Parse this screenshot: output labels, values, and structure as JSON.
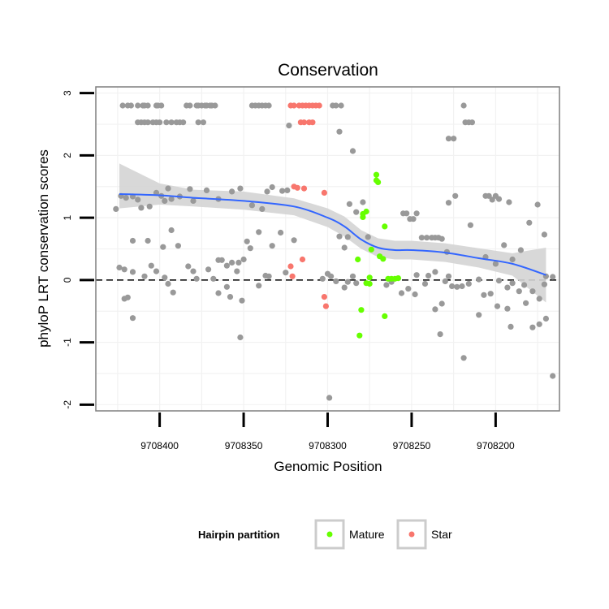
{
  "colors": {
    "other": "#999999",
    "mature": "#66ff00",
    "star": "#f8766d",
    "smooth": "#3366ff",
    "ribbon": "#d4d4d4",
    "grid": "#f2f2f2",
    "panel_border": "#7f7f7f"
  },
  "chart_data": {
    "type": "scatter",
    "title": "Conservation",
    "xlabel": "Genomic Position",
    "ylabel": "phyloP LRT conservation scores",
    "x_reversed": true,
    "xlim": [
      9708438,
      9708162
    ],
    "ylim": [
      -2.1,
      3.1
    ],
    "x_ticks": [
      9708400,
      9708350,
      9708300,
      9708250,
      9708200
    ],
    "x_tick_labels": [
      "9708400",
      "9708350",
      "9708300",
      "9708250",
      "9708200"
    ],
    "y_ticks": [
      -2,
      -1,
      0,
      1,
      2,
      3
    ],
    "y_tick_labels": [
      "-2",
      "-1",
      "0",
      "1",
      "2",
      "3"
    ],
    "reference_line": {
      "y": 0,
      "style": "dashed"
    },
    "legend": {
      "title": "Hairpin partition",
      "position": "bottom",
      "entries": [
        {
          "name": "Mature",
          "color_key": "mature"
        },
        {
          "name": "Star",
          "color_key": "star"
        }
      ]
    },
    "smooth": {
      "x": [
        9708424,
        9708400,
        9708380,
        9708350,
        9708320,
        9708300,
        9708290,
        9708280,
        9708270,
        9708260,
        9708250,
        9708230,
        9708210,
        9708190,
        9708170
      ],
      "y": [
        1.38,
        1.36,
        1.32,
        1.27,
        1.18,
        1.0,
        0.86,
        0.65,
        0.52,
        0.48,
        0.48,
        0.44,
        0.35,
        0.26,
        0.08
      ],
      "lower": [
        1.15,
        1.21,
        1.18,
        1.13,
        1.04,
        0.85,
        0.7,
        0.5,
        0.37,
        0.33,
        0.33,
        0.29,
        0.2,
        0.07,
        -0.36
      ],
      "upper": [
        1.87,
        1.55,
        1.45,
        1.42,
        1.31,
        1.15,
        1.02,
        0.8,
        0.67,
        0.63,
        0.63,
        0.59,
        0.51,
        0.43,
        0.52
      ]
    },
    "series": [
      {
        "name": "Other",
        "color_key": "other",
        "points": [
          [
            9708422,
            2.8
          ],
          [
            9708419,
            2.8
          ],
          [
            9708417,
            2.8
          ],
          [
            9708413,
            2.8
          ],
          [
            9708410,
            2.8
          ],
          [
            9708409,
            2.8
          ],
          [
            9708407,
            2.8
          ],
          [
            9708402,
            2.8
          ],
          [
            9708401,
            2.8
          ],
          [
            9708399,
            2.8
          ],
          [
            9708384,
            2.8
          ],
          [
            9708382,
            2.8
          ],
          [
            9708378,
            2.8
          ],
          [
            9708377,
            2.8
          ],
          [
            9708375,
            2.8
          ],
          [
            9708373,
            2.8
          ],
          [
            9708372,
            2.8
          ],
          [
            9708370,
            2.8
          ],
          [
            9708369,
            2.8
          ],
          [
            9708367,
            2.8
          ],
          [
            9708345,
            2.8
          ],
          [
            9708343,
            2.8
          ],
          [
            9708341,
            2.8
          ],
          [
            9708339,
            2.8
          ],
          [
            9708337,
            2.8
          ],
          [
            9708335,
            2.8
          ],
          [
            9708297,
            2.8
          ],
          [
            9708295,
            2.8
          ],
          [
            9708292,
            2.8
          ],
          [
            9708219,
            2.8
          ],
          [
            9708413,
            2.53
          ],
          [
            9708411,
            2.53
          ],
          [
            9708409,
            2.53
          ],
          [
            9708407,
            2.53
          ],
          [
            9708404,
            2.53
          ],
          [
            9708402,
            2.53
          ],
          [
            9708400,
            2.53
          ],
          [
            9708396,
            2.53
          ],
          [
            9708393,
            2.53
          ],
          [
            9708390,
            2.53
          ],
          [
            9708388,
            2.53
          ],
          [
            9708386,
            2.53
          ],
          [
            9708377,
            2.53
          ],
          [
            9708374,
            2.53
          ],
          [
            9708218,
            2.53
          ],
          [
            9708216,
            2.53
          ],
          [
            9708214,
            2.53
          ],
          [
            9708323,
            2.48
          ],
          [
            9708293,
            2.38
          ],
          [
            9708285,
            2.07
          ],
          [
            9708228,
            2.27
          ],
          [
            9708225,
            2.27
          ],
          [
            9708426,
            1.14
          ],
          [
            9708423,
            1.35
          ],
          [
            9708420,
            1.32
          ],
          [
            9708416,
            1.34
          ],
          [
            9708413,
            1.29
          ],
          [
            9708411,
            1.16
          ],
          [
            9708406,
            1.18
          ],
          [
            9708402,
            1.4
          ],
          [
            9708399,
            1.35
          ],
          [
            9708397,
            1.27
          ],
          [
            9708395,
            1.47
          ],
          [
            9708393,
            1.3
          ],
          [
            9708388,
            1.34
          ],
          [
            9708382,
            1.46
          ],
          [
            9708380,
            1.27
          ],
          [
            9708372,
            1.44
          ],
          [
            9708365,
            1.3
          ],
          [
            9708357,
            1.42
          ],
          [
            9708352,
            1.47
          ],
          [
            9708345,
            1.2
          ],
          [
            9708339,
            1.14
          ],
          [
            9708336,
            1.42
          ],
          [
            9708333,
            1.49
          ],
          [
            9708327,
            1.43
          ],
          [
            9708324,
            1.44
          ],
          [
            9708287,
            1.22
          ],
          [
            9708283,
            1.09
          ],
          [
            9708276,
            0.69
          ],
          [
            9708279,
            1.25
          ],
          [
            9708255,
            1.07
          ],
          [
            9708253,
            1.07
          ],
          [
            9708251,
            0.98
          ],
          [
            9708249,
            0.98
          ],
          [
            9708247,
            1.07
          ],
          [
            9708228,
            1.24
          ],
          [
            9708224,
            1.35
          ],
          [
            9708206,
            1.35
          ],
          [
            9708204,
            1.35
          ],
          [
            9708202,
            1.29
          ],
          [
            9708200,
            1.35
          ],
          [
            9708198,
            1.3
          ],
          [
            9708192,
            1.25
          ],
          [
            9708180,
            0.92
          ],
          [
            9708175,
            1.21
          ],
          [
            9708416,
            0.63
          ],
          [
            9708407,
            0.63
          ],
          [
            9708398,
            0.53
          ],
          [
            9708393,
            0.8
          ],
          [
            9708389,
            0.55
          ],
          [
            9708371,
            0.17
          ],
          [
            9708365,
            0.32
          ],
          [
            9708363,
            0.32
          ],
          [
            9708360,
            0.23
          ],
          [
            9708357,
            0.28
          ],
          [
            9708353,
            0.28
          ],
          [
            9708348,
            0.62
          ],
          [
            9708346,
            0.51
          ],
          [
            9708341,
            0.77
          ],
          [
            9708333,
            0.55
          ],
          [
            9708328,
            0.76
          ],
          [
            9708320,
            0.64
          ],
          [
            9708293,
            0.7
          ],
          [
            9708290,
            0.52
          ],
          [
            9708288,
            0.69
          ],
          [
            9708244,
            0.68
          ],
          [
            9708241,
            0.68
          ],
          [
            9708238,
            0.68
          ],
          [
            9708236,
            0.68
          ],
          [
            9708234,
            0.68
          ],
          [
            9708232,
            0.66
          ],
          [
            9708229,
            0.45
          ],
          [
            9708215,
            0.88
          ],
          [
            9708206,
            0.37
          ],
          [
            9708200,
            0.26
          ],
          [
            9708195,
            0.56
          ],
          [
            9708190,
            0.33
          ],
          [
            9708185,
            0.48
          ],
          [
            9708171,
            0.73
          ],
          [
            9708424,
            0.2
          ],
          [
            9708421,
            0.17
          ],
          [
            9708416,
            0.13
          ],
          [
            9708409,
            0.06
          ],
          [
            9708405,
            0.23
          ],
          [
            9708402,
            0.14
          ],
          [
            9708397,
            0.04
          ],
          [
            9708395,
            -0.06
          ],
          [
            9708392,
            -0.2
          ],
          [
            9708383,
            0.22
          ],
          [
            9708380,
            0.14
          ],
          [
            9708378,
            0.02
          ],
          [
            9708368,
            0.02
          ],
          [
            9708365,
            -0.21
          ],
          [
            9708360,
            -0.11
          ],
          [
            9708358,
            -0.27
          ],
          [
            9708354,
            0.14
          ],
          [
            9708351,
            -0.33
          ],
          [
            9708350,
            0.33
          ],
          [
            9708341,
            -0.09
          ],
          [
            9708337,
            0.07
          ],
          [
            9708335,
            0.06
          ],
          [
            9708325,
            0.12
          ],
          [
            9708303,
            0.02
          ],
          [
            9708300,
            0.1
          ],
          [
            9708298,
            0.06
          ],
          [
            9708295,
            -0.02
          ],
          [
            9708290,
            -0.12
          ],
          [
            9708288,
            -0.03
          ],
          [
            9708285,
            0.06
          ],
          [
            9708283,
            -0.05
          ],
          [
            9708265,
            -0.08
          ],
          [
            9708262,
            -0.03
          ],
          [
            9708256,
            -0.21
          ],
          [
            9708252,
            -0.14
          ],
          [
            9708248,
            -0.23
          ],
          [
            9708247,
            0.08
          ],
          [
            9708242,
            -0.06
          ],
          [
            9708240,
            0.07
          ],
          [
            9708236,
            0.13
          ],
          [
            9708230,
            -0.02
          ],
          [
            9708228,
            0.06
          ],
          [
            9708226,
            -0.1
          ],
          [
            9708223,
            -0.11
          ],
          [
            9708220,
            -0.1
          ],
          [
            9708216,
            -0.06
          ],
          [
            9708210,
            0.01
          ],
          [
            9708207,
            -0.24
          ],
          [
            9708203,
            -0.22
          ],
          [
            9708198,
            -0.01
          ],
          [
            9708193,
            -0.12
          ],
          [
            9708190,
            -0.05
          ],
          [
            9708186,
            -0.18
          ],
          [
            9708183,
            -0.08
          ],
          [
            9708178,
            -0.18
          ],
          [
            9708174,
            -0.3
          ],
          [
            9708171,
            -0.07
          ],
          [
            9708170,
            0.06
          ],
          [
            9708166,
            0.05
          ],
          [
            9708419,
            -0.28
          ],
          [
            9708421,
            -0.3
          ],
          [
            9708416,
            -0.61
          ],
          [
            9708236,
            -0.47
          ],
          [
            9708232,
            -0.38
          ],
          [
            9708233,
            -0.87
          ],
          [
            9708219,
            -1.25
          ],
          [
            9708210,
            -0.56
          ],
          [
            9708199,
            -0.42
          ],
          [
            9708193,
            -0.46
          ],
          [
            9708191,
            -0.75
          ],
          [
            9708182,
            -0.37
          ],
          [
            9708178,
            -0.76
          ],
          [
            9708174,
            -0.71
          ],
          [
            9708170,
            -0.62
          ],
          [
            9708166,
            -1.54
          ],
          [
            9708352,
            -0.92
          ],
          [
            9708299,
            -1.89
          ]
        ]
      },
      {
        "name": "Mature",
        "color_key": "mature",
        "points": [
          [
            9708271,
            1.69
          ],
          [
            9708271,
            1.6
          ],
          [
            9708270,
            1.57
          ],
          [
            9708277,
            1.1
          ],
          [
            9708279,
            1.06
          ],
          [
            9708279,
            1.01
          ],
          [
            9708266,
            0.86
          ],
          [
            9708274,
            0.49
          ],
          [
            9708282,
            0.33
          ],
          [
            9708269,
            0.38
          ],
          [
            9708267,
            0.34
          ],
          [
            9708275,
            0.04
          ],
          [
            9708264,
            0.02
          ],
          [
            9708262,
            0.02
          ],
          [
            9708260,
            0.02
          ],
          [
            9708258,
            0.03
          ],
          [
            9708277,
            -0.05
          ],
          [
            9708275,
            -0.06
          ],
          [
            9708280,
            -0.48
          ],
          [
            9708266,
            -0.58
          ],
          [
            9708281,
            -0.89
          ]
        ]
      },
      {
        "name": "Star",
        "color_key": "star",
        "points": [
          [
            9708322,
            2.8
          ],
          [
            9708320,
            2.8
          ],
          [
            9708317,
            2.8
          ],
          [
            9708315,
            2.8
          ],
          [
            9708313,
            2.8
          ],
          [
            9708311,
            2.8
          ],
          [
            9708309,
            2.8
          ],
          [
            9708307,
            2.8
          ],
          [
            9708305,
            2.8
          ],
          [
            9708316,
            2.53
          ],
          [
            9708314,
            2.53
          ],
          [
            9708311,
            2.53
          ],
          [
            9708309,
            2.53
          ],
          [
            9708320,
            1.5
          ],
          [
            9708318,
            1.48
          ],
          [
            9708314,
            1.47
          ],
          [
            9708302,
            1.4
          ],
          [
            9708315,
            0.33
          ],
          [
            9708322,
            0.22
          ],
          [
            9708321,
            0.06
          ],
          [
            9708302,
            -0.27
          ],
          [
            9708301,
            -0.42
          ]
        ]
      }
    ]
  }
}
